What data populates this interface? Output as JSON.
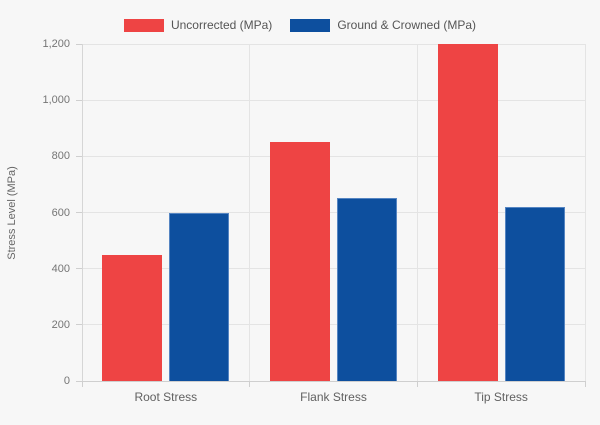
{
  "chart_data": {
    "type": "bar",
    "title": "",
    "categories": [
      "Root Stress",
      "Flank Stress",
      "Tip Stress"
    ],
    "series": [
      {
        "name": "Uncorrected (MPa)",
        "color": "#EE4444",
        "border_color": "#EE4444",
        "values": [
          450,
          850,
          1200
        ]
      },
      {
        "name": "Ground & Crowned (MPa)",
        "color": "#0D4F9E",
        "border_color": "#5585C2",
        "values": [
          600,
          650,
          620
        ]
      }
    ],
    "xlabel": "",
    "ylabel": "Stress Level (MPa)",
    "ylim": [
      0,
      1200
    ],
    "yticks": [
      0,
      200,
      400,
      600,
      800,
      1000,
      1200
    ],
    "ytick_labels": [
      "0",
      "200",
      "400",
      "600",
      "800",
      "1,000",
      "1,200"
    ],
    "grid": true,
    "legend_position": "top"
  },
  "colors": {
    "page_background": "#f7f7f7",
    "gridline": "#e4e4e4",
    "axis": "#cfcfcf",
    "tick_text": "#757575",
    "category_text": "#616161",
    "legend_text": "#555555"
  }
}
